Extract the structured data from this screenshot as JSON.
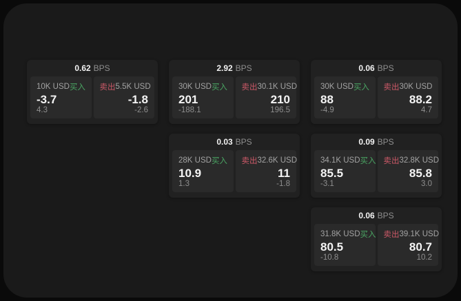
{
  "labels": {
    "buy": "买入",
    "sell": "卖出",
    "bps_unit": "BPS"
  },
  "colors": {
    "buy_green": "#4aa563",
    "sell_red": "#cd5968",
    "window_bg": "#1a1a1a",
    "card_bg": "#212121",
    "panel_bg": "#2a2a2a"
  },
  "cards": [
    {
      "row": 1,
      "col": 1,
      "bps": "0.62",
      "buy": {
        "notional": "10K USD",
        "price": "-3.7",
        "delta": "4.3"
      },
      "sell": {
        "notional": "5.5K USD",
        "price": "-1.8",
        "delta": "-2.6"
      }
    },
    {
      "row": 1,
      "col": 2,
      "bps": "2.92",
      "buy": {
        "notional": "30K USD",
        "price": "201",
        "delta": "-188.1"
      },
      "sell": {
        "notional": "30.1K USD",
        "price": "210",
        "delta": "196.5"
      }
    },
    {
      "row": 1,
      "col": 3,
      "bps": "0.06",
      "buy": {
        "notional": "30K USD",
        "price": "88",
        "delta": "-4.9"
      },
      "sell": {
        "notional": "30K USD",
        "price": "88.2",
        "delta": "4.7"
      }
    },
    {
      "row": 2,
      "col": 2,
      "bps": "0.03",
      "buy": {
        "notional": "28K USD",
        "price": "10.9",
        "delta": "1.3"
      },
      "sell": {
        "notional": "32.6K USD",
        "price": "11",
        "delta": "-1.8"
      }
    },
    {
      "row": 2,
      "col": 3,
      "bps": "0.09",
      "buy": {
        "notional": "34.1K USD",
        "price": "85.5",
        "delta": "-3.1"
      },
      "sell": {
        "notional": "32.8K USD",
        "price": "85.8",
        "delta": "3.0"
      }
    },
    {
      "row": 3,
      "col": 3,
      "bps": "0.06",
      "buy": {
        "notional": "31.8K USD",
        "price": "80.5",
        "delta": "-10.8"
      },
      "sell": {
        "notional": "39.1K USD",
        "price": "80.7",
        "delta": "10.2"
      }
    }
  ]
}
